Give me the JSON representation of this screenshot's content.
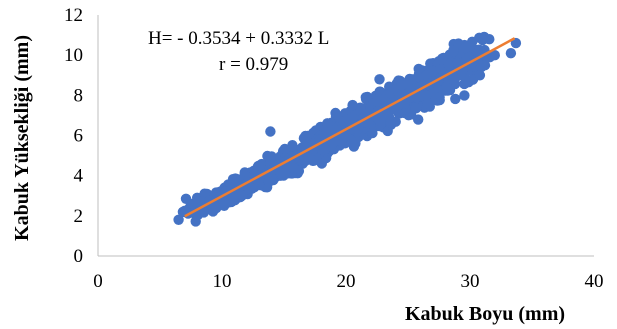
{
  "chart_data": {
    "type": "scatter",
    "xlabel": "Kabuk Boyu (mm)",
    "ylabel": "Kabuk Yüksekliği (mm)",
    "xlim": [
      0,
      40
    ],
    "ylim": [
      0,
      12
    ],
    "xticks": [
      "0",
      "10",
      "20",
      "30",
      "40"
    ],
    "yticks": [
      "0",
      "2",
      "4",
      "6",
      "8",
      "10",
      "12"
    ],
    "grid": false,
    "annotations": [
      "H= - 0.3534  + 0.3332  L",
      "r = 0.979"
    ],
    "series": [
      {
        "marker_color": "#4472C4",
        "points": [
          [
            7.0,
            2.25
          ],
          [
            7.1,
            2.85
          ],
          [
            7.6,
            2.6
          ],
          [
            8.0,
            2.9
          ],
          [
            8.6,
            3.1
          ],
          [
            9.0,
            2.75
          ],
          [
            9.4,
            2.5
          ],
          [
            10.0,
            3.0
          ],
          [
            10.3,
            3.2
          ],
          [
            10.8,
            3.3
          ],
          [
            11.2,
            3.1
          ],
          [
            11.6,
            3.5
          ],
          [
            12.0,
            3.6
          ],
          [
            12.4,
            3.35
          ],
          [
            12.8,
            3.8
          ],
          [
            13.1,
            3.95
          ],
          [
            13.5,
            4.1
          ],
          [
            13.8,
            3.7
          ],
          [
            13.9,
            6.2
          ],
          [
            14.2,
            4.3
          ],
          [
            14.5,
            4.5
          ],
          [
            14.8,
            4.1
          ],
          [
            15.1,
            4.7
          ],
          [
            15.4,
            4.8
          ],
          [
            15.7,
            4.4
          ],
          [
            16.0,
            5.0
          ],
          [
            16.2,
            4.9
          ],
          [
            16.5,
            5.2
          ],
          [
            16.8,
            5.4
          ],
          [
            17.0,
            4.9
          ],
          [
            17.3,
            5.6
          ],
          [
            17.6,
            5.5
          ],
          [
            17.9,
            5.8
          ],
          [
            18.1,
            5.3
          ],
          [
            18.3,
            6.0
          ],
          [
            18.6,
            5.9
          ],
          [
            18.8,
            6.2
          ],
          [
            19.1,
            5.7
          ],
          [
            19.3,
            6.4
          ],
          [
            19.6,
            6.3
          ],
          [
            19.8,
            6.7
          ],
          [
            20.0,
            6.0
          ],
          [
            20.2,
            6.8
          ],
          [
            20.5,
            6.5
          ],
          [
            20.7,
            7.0
          ],
          [
            20.9,
            6.3
          ],
          [
            21.2,
            7.2
          ],
          [
            21.4,
            6.9
          ],
          [
            21.6,
            7.9
          ],
          [
            21.8,
            6.6
          ],
          [
            22.0,
            7.4
          ],
          [
            22.3,
            7.1
          ],
          [
            22.5,
            7.7
          ],
          [
            22.7,
            8.8
          ],
          [
            22.9,
            7.0
          ],
          [
            23.1,
            7.8
          ],
          [
            23.4,
            7.5
          ],
          [
            23.6,
            8.1
          ],
          [
            23.8,
            7.3
          ],
          [
            24.1,
            8.3
          ],
          [
            24.3,
            7.9
          ],
          [
            24.5,
            8.5
          ],
          [
            24.7,
            7.6
          ],
          [
            25.0,
            8.6
          ],
          [
            25.2,
            8.2
          ],
          [
            25.4,
            8.8
          ],
          [
            25.7,
            7.9
          ],
          [
            25.9,
            8.9
          ],
          [
            26.2,
            8.5
          ],
          [
            26.5,
            9.0
          ],
          [
            26.8,
            8.6
          ],
          [
            27.0,
            9.2
          ],
          [
            27.4,
            8.7
          ],
          [
            27.7,
            9.3
          ],
          [
            28.0,
            9.0
          ],
          [
            28.3,
            9.5
          ],
          [
            28.6,
            8.8
          ],
          [
            29.0,
            9.6
          ],
          [
            29.3,
            9.2
          ],
          [
            29.7,
            9.8
          ],
          [
            30.0,
            9.4
          ],
          [
            30.3,
            9.7
          ],
          [
            30.8,
            9.0
          ],
          [
            31.2,
            10.0
          ],
          [
            31.6,
            9.9
          ],
          [
            32.0,
            10.0
          ],
          [
            33.3,
            10.1
          ],
          [
            33.7,
            10.6
          ]
        ]
      }
    ],
    "trendline": {
      "intercept": -0.3534,
      "slope": 0.3332,
      "x_range": [
        7,
        33.6
      ],
      "color": "#ED7D31"
    }
  }
}
